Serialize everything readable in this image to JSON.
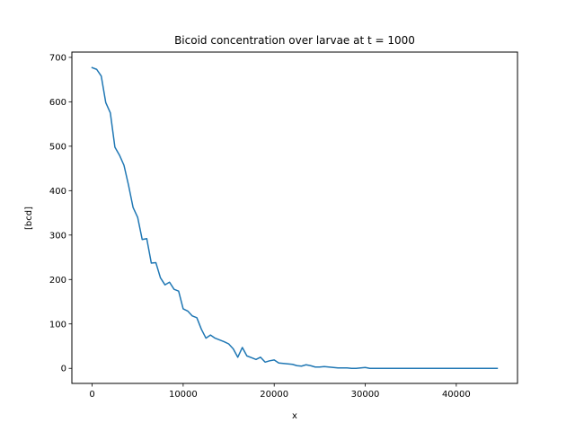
{
  "chart_data": {
    "type": "line",
    "title": "Bicoid concentration over larvae at t = 1000",
    "xlabel": "x",
    "ylabel": "[bcd]",
    "xlim": [
      -2225,
      46725
    ],
    "ylim": [
      -33.9,
      711.9
    ],
    "xticks": [
      0,
      10000,
      20000,
      30000,
      40000
    ],
    "xtick_labels": [
      "0",
      "10000",
      "20000",
      "30000",
      "40000"
    ],
    "yticks": [
      0,
      100,
      200,
      300,
      400,
      500,
      600,
      700
    ],
    "ytick_labels": [
      "0",
      "100",
      "200",
      "300",
      "400",
      "500",
      "600",
      "700"
    ],
    "grid": false,
    "legend": "none",
    "series": [
      {
        "color": "#1f77b4",
        "x": [
          0,
          500,
          1000,
          1500,
          2000,
          2500,
          3000,
          3500,
          4000,
          4500,
          5000,
          5500,
          6000,
          6500,
          7000,
          7500,
          8000,
          8500,
          9000,
          9500,
          10000,
          10500,
          11000,
          11500,
          12000,
          12500,
          13000,
          13500,
          14000,
          14500,
          15000,
          15500,
          16000,
          16500,
          17000,
          17500,
          18000,
          18500,
          19000,
          19500,
          20000,
          20500,
          21000,
          21500,
          22000,
          22500,
          23000,
          23500,
          24000,
          24500,
          25000,
          25500,
          26000,
          26500,
          27000,
          27500,
          28000,
          28500,
          29000,
          29500,
          30000,
          30500,
          31000,
          32000,
          34000,
          36000,
          38000,
          40000,
          42000,
          44500
        ],
        "y": [
          677,
          673,
          658,
          598,
          575,
          498,
          480,
          457,
          412,
          362,
          340,
          290,
          292,
          237,
          238,
          204,
          188,
          194,
          178,
          174,
          134,
          129,
          118,
          114,
          88,
          68,
          75,
          68,
          64,
          60,
          55,
          44,
          25,
          47,
          28,
          24,
          20,
          25,
          14,
          17,
          19,
          12,
          11,
          10,
          9,
          6,
          5,
          8,
          6,
          3,
          3,
          4,
          3,
          2,
          1,
          1,
          1,
          0,
          0,
          1,
          2,
          0,
          0,
          0,
          0,
          0,
          0,
          0,
          0,
          0
        ]
      }
    ]
  }
}
